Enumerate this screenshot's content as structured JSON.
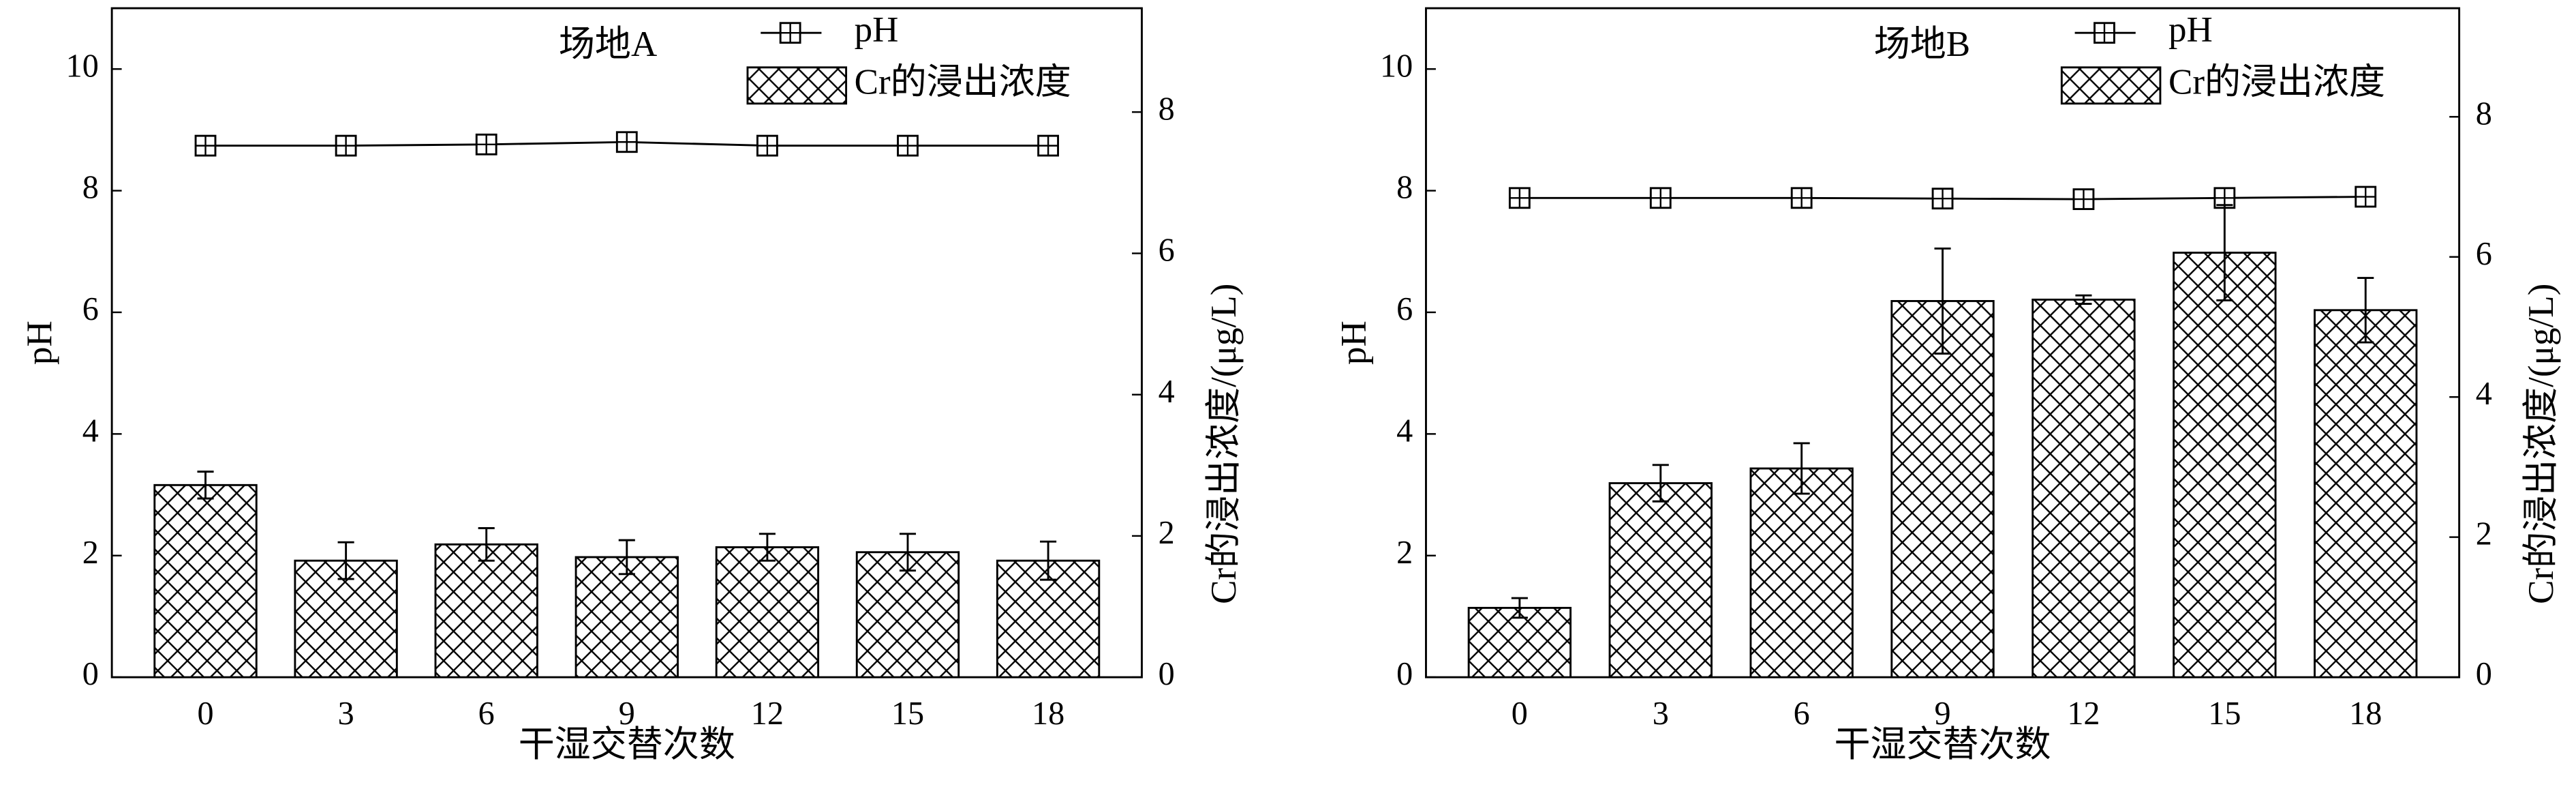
{
  "chart_data": [
    {
      "type": "bar",
      "annotation": "场地A",
      "x_label": "干湿交替次数",
      "y_label": "pH",
      "y2_label": "Cr的浸出浓度/(μg/L)",
      "categories": [
        "0",
        "3",
        "6",
        "9",
        "12",
        "15",
        "18"
      ],
      "ylim": [
        0,
        11
      ],
      "yticks": [
        0,
        2,
        4,
        6,
        8,
        10
      ],
      "y2lim": [
        0,
        9.47
      ],
      "y2ticks": [
        0,
        2,
        4,
        6,
        8
      ],
      "series": [
        {
          "name": "pH",
          "type": "line",
          "color": "#000000",
          "values": [
            8.74,
            8.74,
            8.76,
            8.8,
            8.74,
            8.74,
            8.74
          ]
        },
        {
          "name": "Cr的浸出浓度",
          "axis": "y2",
          "color": "#000000",
          "values": [
            2.72,
            1.65,
            1.88,
            1.7,
            1.84,
            1.77,
            1.65
          ],
          "errors": [
            0.19,
            0.26,
            0.23,
            0.24,
            0.19,
            0.26,
            0.27
          ]
        }
      ]
    },
    {
      "type": "bar",
      "annotation": "场地B",
      "x_label": "干湿交替次数",
      "y_label": "pH",
      "y2_label": "Cr的浸出浓度/(μg/L)",
      "categories": [
        "0",
        "3",
        "6",
        "9",
        "12",
        "15",
        "18"
      ],
      "ylim": [
        0,
        11
      ],
      "yticks": [
        0,
        2,
        4,
        6,
        8,
        10
      ],
      "y2lim": [
        0,
        9.55
      ],
      "y2ticks": [
        0,
        2,
        4,
        6,
        8
      ],
      "series": [
        {
          "name": "pH",
          "type": "line",
          "color": "#000000",
          "values": [
            7.88,
            7.88,
            7.88,
            7.87,
            7.86,
            7.88,
            7.9
          ]
        },
        {
          "name": "Cr的浸出浓度",
          "axis": "y2",
          "color": "#000000",
          "values": [
            0.99,
            2.77,
            2.98,
            5.37,
            5.39,
            6.06,
            5.24
          ],
          "errors": [
            0.14,
            0.26,
            0.36,
            0.75,
            0.06,
            0.68,
            0.46
          ]
        }
      ]
    }
  ]
}
